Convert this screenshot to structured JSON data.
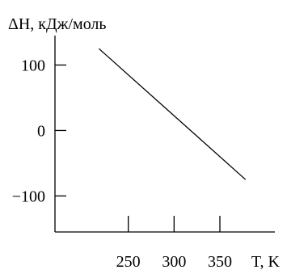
{
  "chart_data": {
    "type": "line",
    "xlabel": "T, K",
    "ylabel": "ΔH, кДж/моль",
    "xlim": [
      170,
      410
    ],
    "ylim": [
      -155,
      145
    ],
    "x_ticks": [
      250,
      300,
      350
    ],
    "x_tick_labels": [
      "250",
      "300",
      "350"
    ],
    "y_ticks": [
      100,
      0,
      -100
    ],
    "y_tick_labels": [
      "100",
      "0",
      "−100"
    ],
    "grid": false,
    "series": [
      {
        "x": [
          218,
          378
        ],
        "y": [
          125,
          -75
        ]
      }
    ]
  }
}
